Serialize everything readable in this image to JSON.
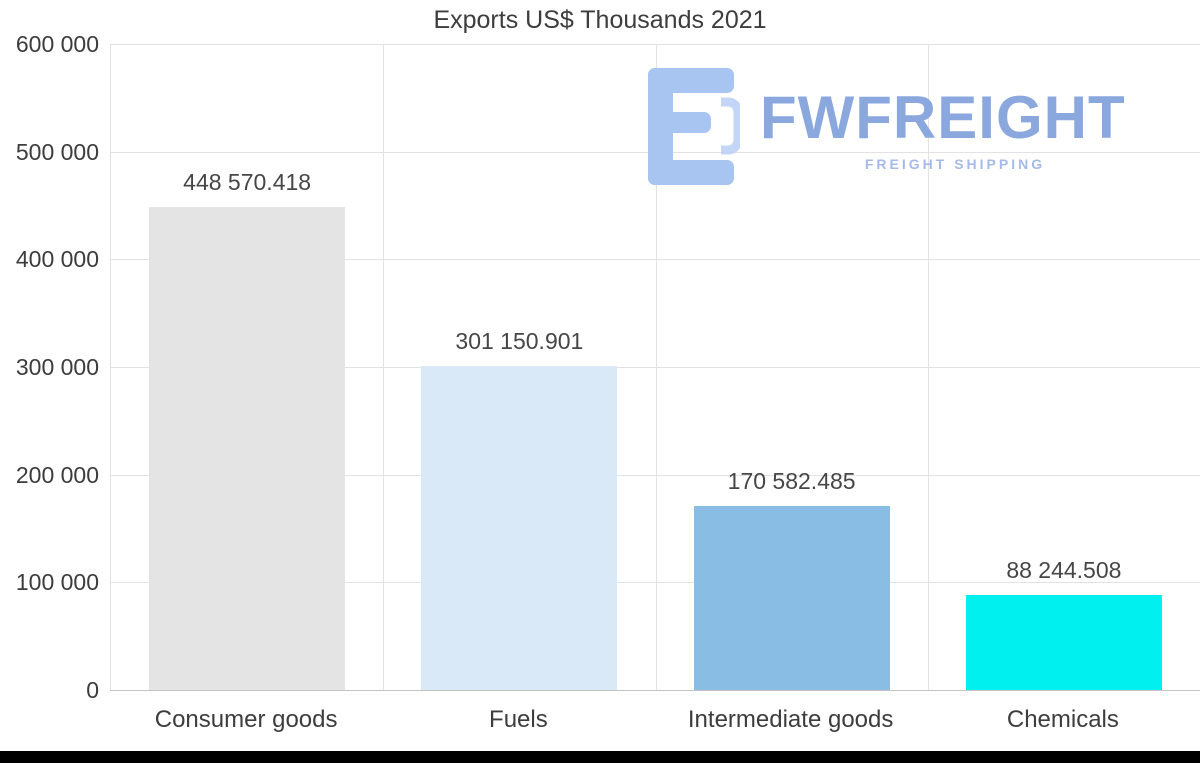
{
  "chart_data": {
    "type": "bar",
    "title": "Exports US$ Thousands 2021",
    "categories": [
      "Consumer goods",
      "Fuels",
      "Intermediate goods",
      "Chemicals"
    ],
    "values": [
      448570.418,
      301150.901,
      170582.485,
      88244.508
    ],
    "value_labels": [
      "448 570.418",
      "301 150.901",
      "170 582.485",
      "88 244.508"
    ],
    "bar_colors": [
      "#e4e4e4",
      "#d9e9f8",
      "#8abde3",
      "#00f0f0"
    ],
    "ylim": [
      0,
      600000
    ],
    "ytick_labels": [
      "600 000",
      "500 000",
      "400 000",
      "300 000",
      "200 000",
      "100 000",
      "0"
    ],
    "grid": true,
    "legend": false,
    "xlabel": "",
    "ylabel": ""
  },
  "watermark": {
    "brand": "FWFREIGHT",
    "tagline": "FREIGHT SHIPPING",
    "brand_color": "#8aa8de",
    "tagline_color": "#a6bae9",
    "icon": "fwfreight-logo",
    "icon_color": "#a8c4f1"
  }
}
